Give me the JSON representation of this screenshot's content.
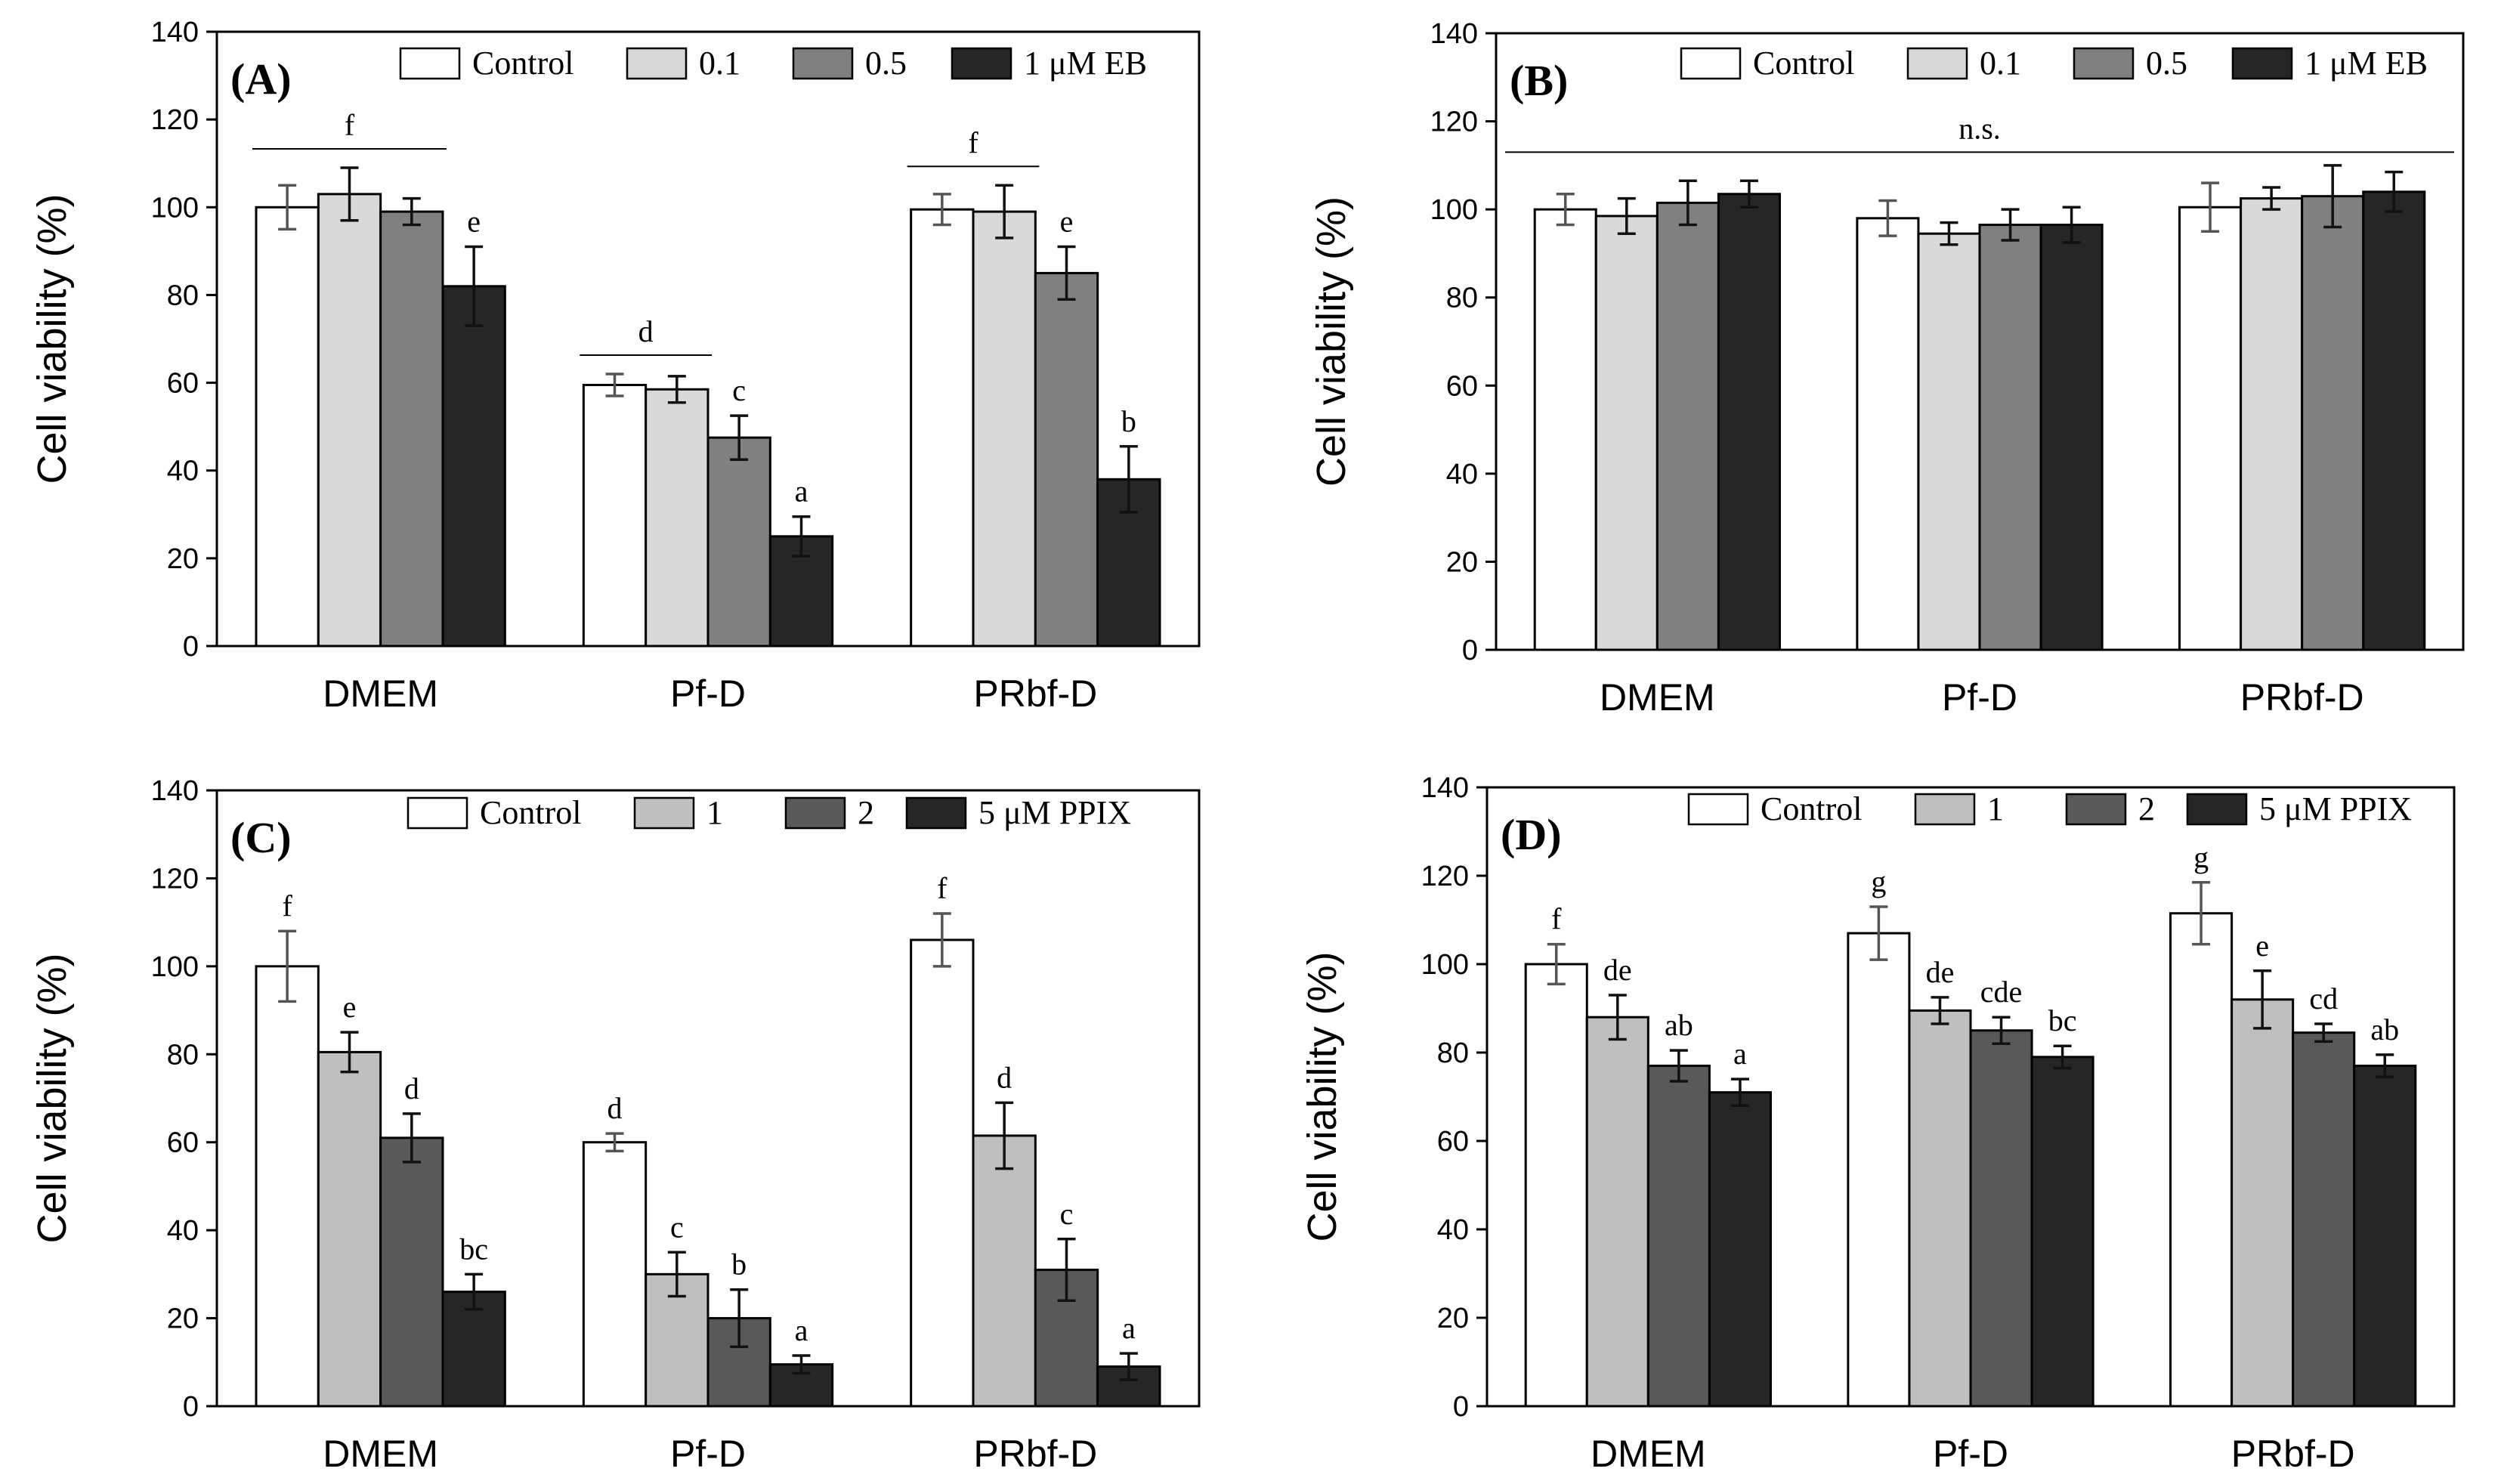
{
  "chart_data": [
    {
      "panel": "(A)",
      "type": "bar",
      "title": "",
      "xlabel": "",
      "ylabel": "Cell viability (%)",
      "ylim": [
        0,
        140
      ],
      "yticks": [
        0,
        20,
        40,
        60,
        80,
        100,
        120,
        140
      ],
      "categories": [
        "DMEM",
        "Pf-D",
        "PRbf-D"
      ],
      "colors": [
        "#ffffff",
        "#d9d9d9",
        "#808080",
        "#262626"
      ],
      "series": [
        {
          "name": "Control",
          "values": [
            100,
            59.5,
            99.5
          ],
          "errors": [
            5,
            2.5,
            3.5
          ],
          "labels": [
            "",
            "",
            ""
          ]
        },
        {
          "name": "0.1",
          "values": [
            103,
            58.5,
            99
          ],
          "errors": [
            6,
            3,
            6
          ],
          "labels": [
            "",
            "",
            ""
          ]
        },
        {
          "name": "0.5",
          "values": [
            99,
            47.5,
            85
          ],
          "errors": [
            3,
            5,
            6
          ],
          "labels": [
            "",
            "c",
            "e"
          ]
        },
        {
          "name": "1 μM EB",
          "values": [
            82,
            25,
            38
          ],
          "errors": [
            9,
            4.5,
            7.5
          ],
          "labels": [
            "e",
            "a",
            "b"
          ]
        }
      ],
      "group_labels": [
        {
          "text": "f",
          "from_series": 0,
          "to_series": 2,
          "category": 0
        },
        {
          "text": "d",
          "from_series": 0,
          "to_series": 1,
          "category": 1
        },
        {
          "text": "f",
          "from_series": 0,
          "to_series": 1,
          "category": 2
        }
      ],
      "span_label": null
    },
    {
      "panel": "(B)",
      "type": "bar",
      "title": "",
      "xlabel": "",
      "ylabel": "Cell viability (%)",
      "ylim": [
        0,
        140
      ],
      "yticks": [
        0,
        20,
        40,
        60,
        80,
        100,
        120,
        140
      ],
      "categories": [
        "DMEM",
        "Pf-D",
        "PRbf-D"
      ],
      "colors": [
        "#ffffff",
        "#d9d9d9",
        "#808080",
        "#262626"
      ],
      "series": [
        {
          "name": "Control",
          "values": [
            100,
            98,
            100.5
          ],
          "errors": [
            3.5,
            4,
            5.5
          ],
          "labels": [
            "",
            "",
            ""
          ]
        },
        {
          "name": "0.1",
          "values": [
            98.5,
            94.5,
            102.5
          ],
          "errors": [
            4,
            2.5,
            2.5
          ],
          "labels": [
            "",
            "",
            ""
          ]
        },
        {
          "name": "0.5",
          "values": [
            101.5,
            96.5,
            103
          ],
          "errors": [
            5,
            3.5,
            7
          ],
          "labels": [
            "",
            "",
            ""
          ]
        },
        {
          "name": "1 μM EB",
          "values": [
            103.5,
            96.5,
            104
          ],
          "errors": [
            3,
            4,
            4.5
          ],
          "labels": [
            "",
            "",
            ""
          ]
        }
      ],
      "group_labels": [],
      "span_label": {
        "text": "n.s.",
        "y": 113
      }
    },
    {
      "panel": "(C)",
      "type": "bar",
      "title": "",
      "xlabel": "",
      "ylabel": "Cell viability (%)",
      "ylim": [
        0,
        140
      ],
      "yticks": [
        0,
        20,
        40,
        60,
        80,
        100,
        120,
        140
      ],
      "categories": [
        "DMEM",
        "Pf-D",
        "PRbf-D"
      ],
      "colors": [
        "#ffffff",
        "#bfbfbf",
        "#595959",
        "#262626"
      ],
      "series": [
        {
          "name": "Control",
          "values": [
            100,
            60,
            106
          ],
          "errors": [
            8,
            2,
            6
          ],
          "labels": [
            "f",
            "d",
            "f"
          ]
        },
        {
          "name": "1",
          "values": [
            80.5,
            30,
            61.5
          ],
          "errors": [
            4.5,
            5,
            7.5
          ],
          "labels": [
            "e",
            "c",
            "d"
          ]
        },
        {
          "name": "2",
          "values": [
            61,
            20,
            31
          ],
          "errors": [
            5.5,
            6.5,
            7
          ],
          "labels": [
            "d",
            "b",
            "c"
          ]
        },
        {
          "name": "5 μM PPIX",
          "values": [
            26,
            9.5,
            9
          ],
          "errors": [
            4,
            2,
            3
          ],
          "labels": [
            "bc",
            "a",
            "a"
          ]
        }
      ],
      "group_labels": [],
      "span_label": null
    },
    {
      "panel": "(D)",
      "type": "bar",
      "title": "",
      "xlabel": "",
      "ylabel": "Cell viability (%)",
      "ylim": [
        0,
        140
      ],
      "yticks": [
        0,
        20,
        40,
        60,
        80,
        100,
        120,
        140
      ],
      "categories": [
        "DMEM",
        "Pf-D",
        "PRbf-D"
      ],
      "colors": [
        "#ffffff",
        "#bfbfbf",
        "#595959",
        "#262626"
      ],
      "series": [
        {
          "name": "Control",
          "values": [
            100,
            107,
            111.5
          ],
          "errors": [
            4.5,
            6,
            7
          ],
          "labels": [
            "f",
            "g",
            "g"
          ]
        },
        {
          "name": "1",
          "values": [
            88,
            89.5,
            92
          ],
          "errors": [
            5,
            3,
            6.5
          ],
          "labels": [
            "de",
            "de",
            "e"
          ]
        },
        {
          "name": "2",
          "values": [
            77,
            85,
            84.5
          ],
          "errors": [
            3.5,
            3,
            2
          ],
          "labels": [
            "ab",
            "cde",
            "cd"
          ]
        },
        {
          "name": "5 μM PPIX",
          "values": [
            71,
            79,
            77
          ],
          "errors": [
            3,
            2.5,
            2.5
          ],
          "labels": [
            "a",
            "bc",
            "ab"
          ]
        }
      ],
      "group_labels": [],
      "span_label": null
    }
  ]
}
